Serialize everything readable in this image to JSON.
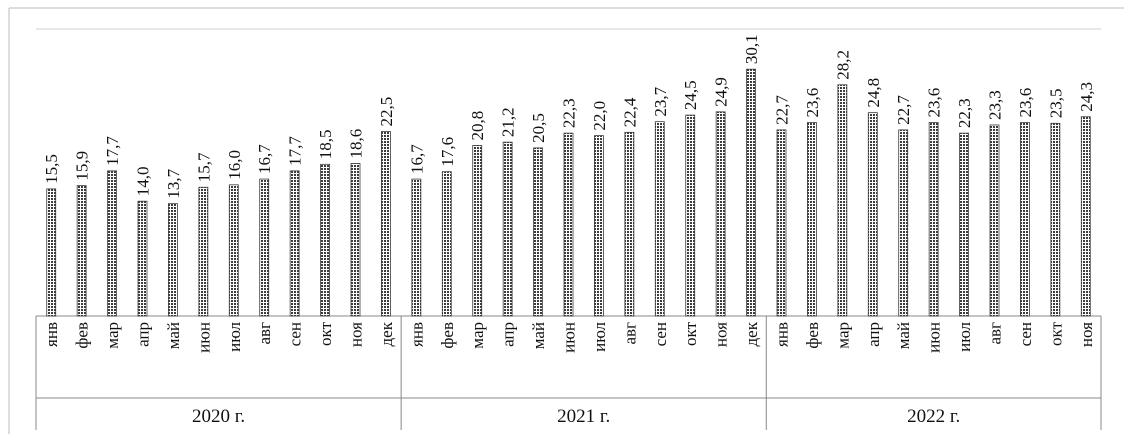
{
  "chart_data": {
    "type": "bar",
    "ylim": [
      0,
      35
    ],
    "grid": true,
    "legend": "none",
    "bar_color": "#3c3c3c",
    "categories": [
      "янв",
      "фев",
      "мар",
      "апр",
      "май",
      "июн",
      "июл",
      "авг",
      "сен",
      "окт",
      "ноя",
      "дек",
      "янв",
      "фев",
      "мар",
      "апр",
      "май",
      "июн",
      "июл",
      "авг",
      "сен",
      "окт",
      "ноя",
      "дек",
      "янв",
      "фев",
      "мар",
      "апр",
      "май",
      "июн",
      "июл",
      "авг",
      "сен",
      "окт",
      "ноя"
    ],
    "groups": [
      {
        "label": "2020 г.",
        "count": 12
      },
      {
        "label": "2021 г.",
        "count": 12
      },
      {
        "label": "2022 г.",
        "count": 11
      }
    ],
    "values": [
      15.5,
      15.9,
      17.7,
      14.0,
      13.7,
      15.7,
      16.0,
      16.7,
      17.7,
      18.5,
      18.6,
      22.5,
      16.7,
      17.6,
      20.8,
      21.2,
      20.5,
      22.3,
      22.0,
      22.4,
      23.7,
      24.5,
      24.9,
      30.1,
      22.7,
      23.6,
      28.2,
      24.8,
      22.7,
      23.6,
      22.3,
      23.3,
      23.6,
      23.5,
      24.3
    ],
    "value_labels": [
      "15,5",
      "15,9",
      "17,7",
      "14,0",
      "13,7",
      "15,7",
      "16,0",
      "16,7",
      "17,7",
      "18,5",
      "18,6",
      "22,5",
      "16,7",
      "17,6",
      "20,8",
      "21,2",
      "20,5",
      "22,3",
      "22,0",
      "22,4",
      "23,7",
      "24,5",
      "24,9",
      "30,1",
      "22,7",
      "23,6",
      "28,2",
      "24,8",
      "22,7",
      "23,6",
      "22,3",
      "23,3",
      "23,6",
      "23,5",
      "24,3"
    ]
  }
}
